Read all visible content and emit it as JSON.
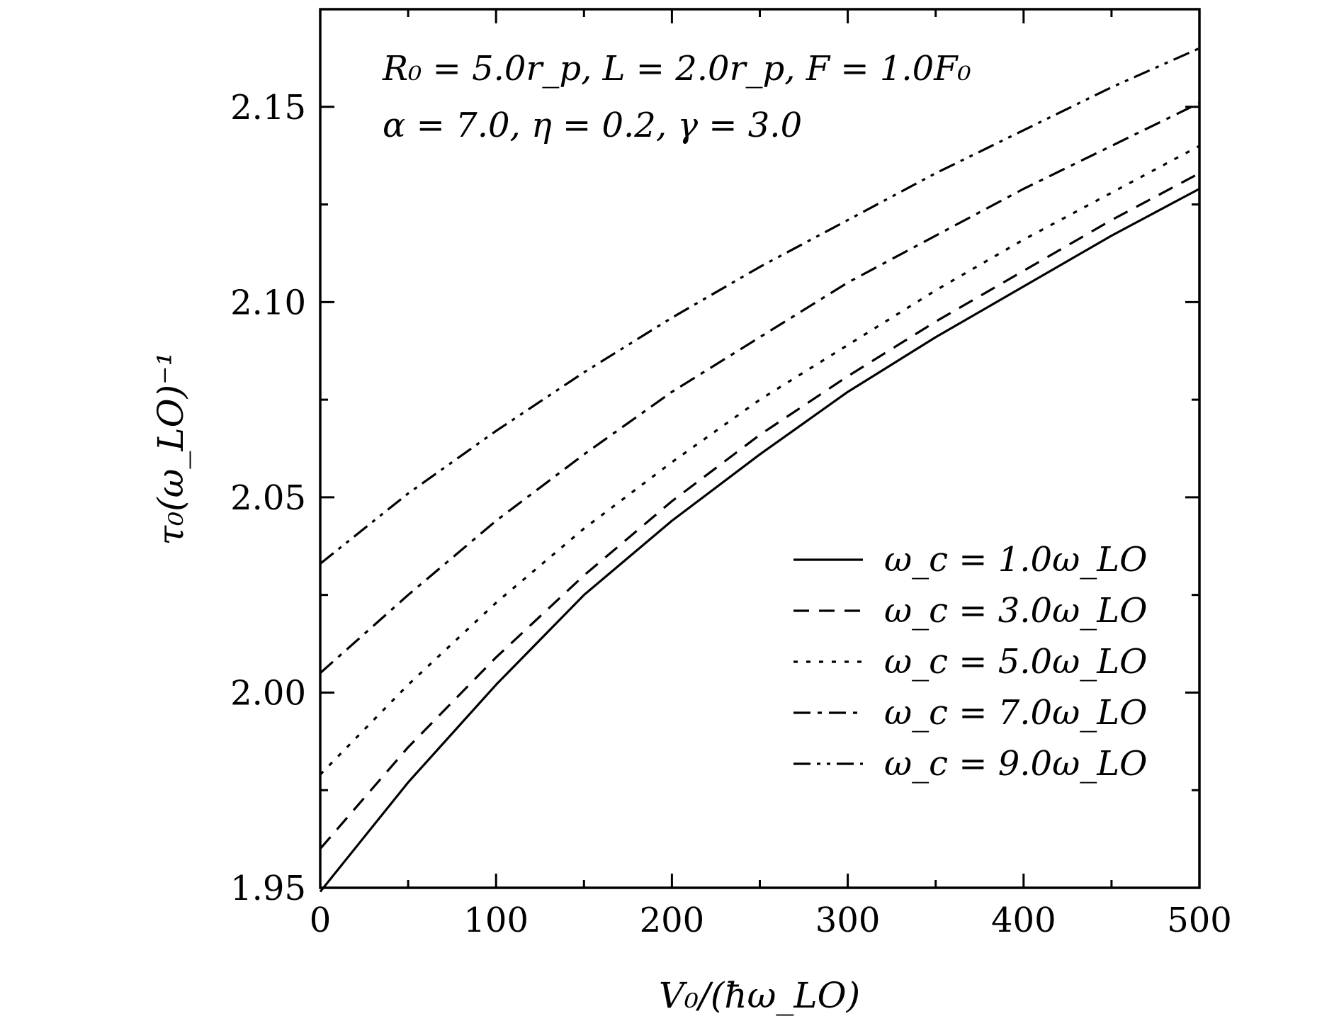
{
  "chart_data": {
    "type": "line",
    "xlabel": "V₀/(ħω_LO)",
    "ylabel": "τ₀(ω_LO)⁻¹",
    "xlim": [
      0,
      500
    ],
    "ylim": [
      1.95,
      2.175
    ],
    "x_ticks": [
      0,
      100,
      200,
      300,
      400,
      500
    ],
    "x_tick_labels": [
      "0",
      "100",
      "200",
      "300",
      "400",
      "500"
    ],
    "y_ticks": [
      1.95,
      2.0,
      2.05,
      2.1,
      2.15
    ],
    "y_tick_labels": [
      "1.95",
      "2.00",
      "2.05",
      "2.10",
      "2.15"
    ],
    "grid": false,
    "legend_position": "lower-right",
    "annotations": [
      "R₀ = 5.0r_p, L = 2.0r_p, F = 1.0F₀",
      "α = 7.0, η = 0.2, γ = 3.0"
    ],
    "x": [
      0,
      50,
      100,
      150,
      200,
      250,
      300,
      350,
      400,
      450,
      500
    ],
    "series": [
      {
        "name": "ω_c = 1.0ω_LO",
        "style": "solid",
        "values": [
          1.949,
          1.977,
          2.002,
          2.025,
          2.044,
          2.061,
          2.077,
          2.091,
          2.104,
          2.117,
          2.129
        ]
      },
      {
        "name": "ω_c = 3.0ω_LO",
        "style": "dashed",
        "values": [
          1.96,
          1.986,
          2.009,
          2.03,
          2.049,
          2.066,
          2.081,
          2.095,
          2.108,
          2.121,
          2.133
        ]
      },
      {
        "name": "ω_c = 5.0ω_LO",
        "style": "dotted",
        "values": [
          1.979,
          2.002,
          2.023,
          2.042,
          2.059,
          2.075,
          2.089,
          2.103,
          2.116,
          2.128,
          2.14
        ]
      },
      {
        "name": "ω_c = 7.0ω_LO",
        "style": "dashdot",
        "values": [
          2.005,
          2.025,
          2.044,
          2.061,
          2.077,
          2.091,
          2.105,
          2.117,
          2.129,
          2.14,
          2.151
        ]
      },
      {
        "name": "ω_c = 9.0ω_LO",
        "style": "dashdotdot",
        "values": [
          2.033,
          2.051,
          2.067,
          2.082,
          2.096,
          2.109,
          2.121,
          2.133,
          2.144,
          2.155,
          2.165
        ]
      }
    ]
  }
}
